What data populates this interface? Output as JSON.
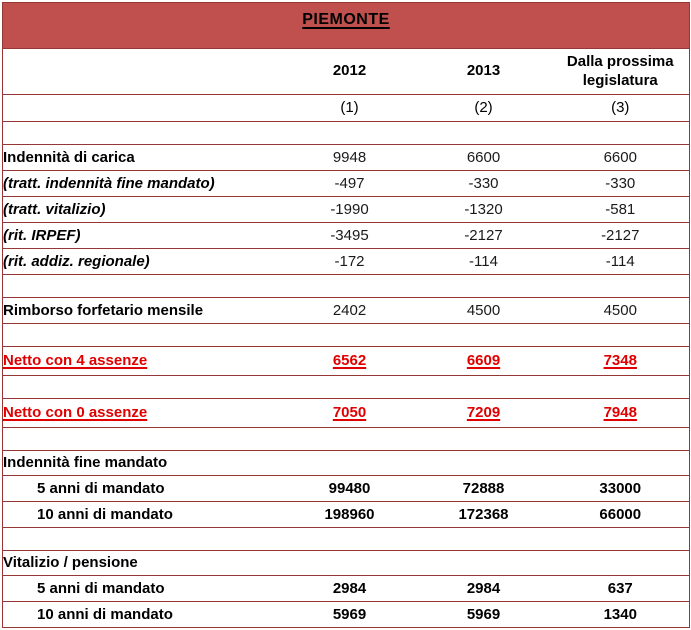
{
  "title": "PIEMONTE",
  "columns": [
    "2012",
    "2013",
    "Dalla prossima legislatura"
  ],
  "column_refs": [
    "(1)",
    "(2)",
    "(3)"
  ],
  "colors": {
    "header_band": "#C0504D",
    "border": "#953735",
    "highlight_red": "#E00000",
    "text": "#000000"
  },
  "rows": [
    {
      "kind": "empty",
      "label": "",
      "values": [
        "",
        "",
        ""
      ]
    },
    {
      "kind": "data",
      "label": "Indennità di carica",
      "values": [
        "9948",
        "6600",
        "6600"
      ]
    },
    {
      "kind": "deduction",
      "label": "(tratt. indennità fine mandato)",
      "values": [
        "-497",
        "-330",
        "-330"
      ]
    },
    {
      "kind": "deduction",
      "label": "(tratt. vitalizio)",
      "values": [
        "-1990",
        "-1320",
        "-581"
      ]
    },
    {
      "kind": "deduction",
      "label": "(rit. IRPEF)",
      "values": [
        "-3495",
        "-2127",
        "-2127"
      ]
    },
    {
      "kind": "deduction",
      "label": "(rit. addiz. regionale)",
      "values": [
        "-172",
        "-114",
        "-114"
      ]
    },
    {
      "kind": "empty",
      "label": "",
      "values": [
        "",
        "",
        ""
      ]
    },
    {
      "kind": "data",
      "label": "Rimborso forfetario mensile",
      "values": [
        "2402",
        "4500",
        "4500"
      ]
    },
    {
      "kind": "empty",
      "label": "",
      "values": [
        "",
        "",
        ""
      ]
    },
    {
      "kind": "netto",
      "label": "Netto con 4 assenze",
      "values": [
        "6562",
        "6609",
        "7348"
      ]
    },
    {
      "kind": "empty",
      "label": "",
      "values": [
        "",
        "",
        ""
      ]
    },
    {
      "kind": "netto",
      "label": "Netto con 0 assenze",
      "values": [
        "7050",
        "7209",
        "7948"
      ]
    },
    {
      "kind": "empty",
      "label": "",
      "values": [
        "",
        "",
        ""
      ]
    },
    {
      "kind": "section",
      "label": "Indennità fine mandato",
      "values": [
        "",
        "",
        ""
      ]
    },
    {
      "kind": "subrow",
      "label": "5 anni di mandato",
      "values": [
        "99480",
        "72888",
        "33000"
      ]
    },
    {
      "kind": "subrow",
      "label": "10 anni di mandato",
      "values": [
        "198960",
        "172368",
        "66000"
      ]
    },
    {
      "kind": "empty",
      "label": "",
      "values": [
        "",
        "",
        ""
      ]
    },
    {
      "kind": "section",
      "label": "Vitalizio / pensione",
      "values": [
        "",
        "",
        ""
      ]
    },
    {
      "kind": "subrow",
      "label": "5 anni di mandato",
      "values": [
        "2984",
        "2984",
        "637"
      ]
    },
    {
      "kind": "subrow",
      "label": "10 anni di mandato",
      "values": [
        "5969",
        "5969",
        "1340"
      ]
    }
  ]
}
